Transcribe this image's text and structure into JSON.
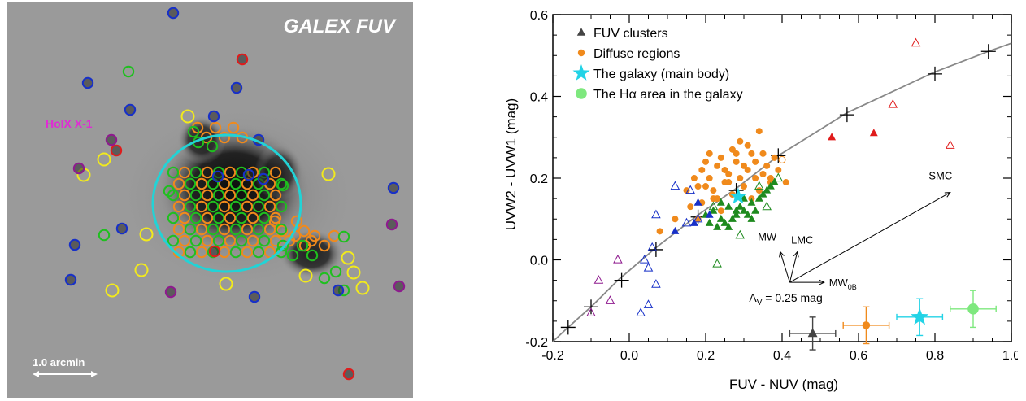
{
  "image_panel": {
    "title": "GALEX FUV",
    "source_label": "HoIX X-1",
    "scale_label": "1.0 arcmin",
    "colors": {
      "background": "#9a9a9a",
      "ellipse": "#22d3d6",
      "label_magenta": "#e02bd5"
    },
    "markers": {
      "yellow": {
        "color": "#f2ea1c",
        "count": 12
      },
      "blue": {
        "color": "#1730c8",
        "count": 15
      },
      "green": {
        "color": "#1fbf1f",
        "count": 55
      },
      "orange": {
        "color": "#f08a1c",
        "count": 60
      },
      "red": {
        "color": "#e01b1b",
        "count": 4
      },
      "purple": {
        "color": "#8e1a8e",
        "count": 5
      }
    }
  },
  "chart_data": {
    "type": "scatter",
    "xlabel": "FUV - NUV (mag)",
    "ylabel": "UVW2 - UVW1 (mag)",
    "xlim": [
      -0.2,
      1.0
    ],
    "ylim": [
      -0.2,
      0.6
    ],
    "xticks": [
      "-0.2",
      "0.0",
      "0.2",
      "0.4",
      "0.6",
      "0.8",
      "1.0"
    ],
    "yticks": [
      "-0.2",
      "0.0",
      "0.2",
      "0.4",
      "0.6"
    ],
    "legend": [
      {
        "label": "FUV clusters",
        "marker": "triangle",
        "color": "#444444"
      },
      {
        "label": "Diffuse regions",
        "marker": "circle",
        "color": "#f08a1c"
      },
      {
        "label": "The galaxy (main body)",
        "marker": "star",
        "color": "#22d3e6"
      },
      {
        "label": "The Hα area in the galaxy",
        "marker": "circle",
        "color": "#7ee87e"
      }
    ],
    "model_track": {
      "x": [
        -0.2,
        -0.16,
        -0.1,
        -0.03,
        0.07,
        0.18,
        0.28,
        0.39,
        0.57,
        0.8,
        0.94,
        1.0
      ],
      "y": [
        -0.2,
        -0.165,
        -0.115,
        -0.05,
        0.03,
        0.11,
        0.175,
        0.255,
        0.36,
        0.46,
        0.51,
        0.53
      ],
      "crosses_x": [
        -0.16,
        -0.1,
        -0.02,
        0.07,
        0.18,
        0.28,
        0.39,
        0.57,
        0.8,
        0.94
      ],
      "crosses_y": [
        -0.165,
        -0.115,
        -0.05,
        0.025,
        0.105,
        0.17,
        0.255,
        0.355,
        0.455,
        0.51
      ]
    },
    "series": [
      {
        "name": "Diffuse regions",
        "marker": "circle",
        "color": "#f08a1c",
        "x": [
          0.15,
          0.17,
          0.18,
          0.19,
          0.2,
          0.21,
          0.22,
          0.23,
          0.24,
          0.25,
          0.26,
          0.27,
          0.28,
          0.29,
          0.3,
          0.31,
          0.32,
          0.33,
          0.34,
          0.35,
          0.36,
          0.37,
          0.38,
          0.39,
          0.41,
          0.19,
          0.23,
          0.27,
          0.31,
          0.35,
          0.21,
          0.25,
          0.29,
          0.33,
          0.37,
          0.22,
          0.26,
          0.3,
          0.2,
          0.24,
          0.28,
          0.32,
          0.16,
          0.18,
          0.34,
          0.12,
          0.08
        ],
        "y": [
          0.17,
          0.2,
          0.18,
          0.22,
          0.24,
          0.2,
          0.17,
          0.23,
          0.25,
          0.19,
          0.21,
          0.16,
          0.24,
          0.2,
          0.18,
          0.22,
          0.26,
          0.2,
          0.17,
          0.21,
          0.23,
          0.19,
          0.25,
          0.22,
          0.19,
          0.14,
          0.15,
          0.27,
          0.28,
          0.26,
          0.26,
          0.22,
          0.29,
          0.24,
          0.2,
          0.15,
          0.19,
          0.23,
          0.18,
          0.12,
          0.26,
          0.15,
          0.13,
          0.1,
          0.315,
          0.1,
          0.07
        ]
      },
      {
        "name": "Diffuse regions (open)",
        "marker": "circle-open",
        "color": "#f08a1c",
        "x": [
          0.4
        ],
        "y": [
          0.245
        ]
      },
      {
        "name": "Green clusters",
        "marker": "triangle",
        "color": "#1e8a1e",
        "x": [
          0.2,
          0.22,
          0.24,
          0.26,
          0.28,
          0.3,
          0.32,
          0.34,
          0.36,
          0.23,
          0.25,
          0.27,
          0.29,
          0.31,
          0.33,
          0.35,
          0.37,
          0.21,
          0.24,
          0.28,
          0.32,
          0.38,
          0.26,
          0.3
        ],
        "y": [
          0.11,
          0.12,
          0.1,
          0.13,
          0.11,
          0.12,
          0.14,
          0.15,
          0.17,
          0.08,
          0.09,
          0.1,
          0.13,
          0.11,
          0.12,
          0.16,
          0.18,
          0.09,
          0.14,
          0.12,
          0.1,
          0.19,
          0.08,
          0.15
        ]
      },
      {
        "name": "Green clusters (open)",
        "marker": "triangle-open",
        "color": "#1e8a1e",
        "x": [
          0.29,
          0.23,
          0.36,
          0.39,
          0.22,
          0.34
        ],
        "y": [
          0.06,
          -0.01,
          0.13,
          0.2,
          0.13,
          0.18
        ]
      },
      {
        "name": "Blue clusters",
        "marker": "triangle",
        "color": "#1730c8",
        "x": [
          0.12,
          0.17,
          0.18,
          0.21
        ],
        "y": [
          0.07,
          0.09,
          0.14,
          0.11
        ]
      },
      {
        "name": "Blue clusters (open)",
        "marker": "triangle-open",
        "color": "#1730c8",
        "x": [
          0.07,
          0.12,
          0.15,
          0.05,
          0.06,
          0.03,
          0.07,
          0.04,
          0.05,
          0.18,
          0.16
        ],
        "y": [
          0.11,
          0.18,
          0.09,
          -0.02,
          0.03,
          -0.13,
          -0.06,
          0.0,
          -0.11,
          0.1,
          0.17
        ]
      },
      {
        "name": "Purple clusters (open)",
        "marker": "triangle-open",
        "color": "#8e1a8e",
        "x": [
          -0.1,
          -0.08,
          -0.05,
          -0.03
        ],
        "y": [
          -0.13,
          -0.05,
          -0.1,
          0.0
        ]
      },
      {
        "name": "Red clusters",
        "marker": "triangle",
        "color": "#e01b1b",
        "x": [
          0.53,
          0.64
        ],
        "y": [
          0.3,
          0.31
        ]
      },
      {
        "name": "Red clusters (open)",
        "marker": "triangle-open",
        "color": "#e01b1b",
        "x": [
          0.75,
          0.69,
          0.84
        ],
        "y": [
          0.53,
          0.38,
          0.28
        ]
      },
      {
        "name": "The galaxy (main body)",
        "marker": "star",
        "color": "#22d3e6",
        "x": [
          0.285
        ],
        "y": [
          0.155
        ]
      }
    ],
    "error_bars": [
      {
        "marker": "triangle",
        "color": "#444444",
        "x": 0.48,
        "y": -0.18,
        "xerr": 0.06,
        "yerr": 0.04
      },
      {
        "marker": "circle",
        "color": "#f08a1c",
        "x": 0.62,
        "y": -0.16,
        "xerr": 0.06,
        "yerr": 0.045
      },
      {
        "marker": "star",
        "color": "#22d3e6",
        "x": 0.76,
        "y": -0.14,
        "xerr": 0.06,
        "yerr": 0.045
      },
      {
        "marker": "circle",
        "color": "#7ee87e",
        "x": 0.9,
        "y": -0.12,
        "xerr": 0.06,
        "yerr": 0.045
      }
    ],
    "extinction": {
      "origin": [
        0.42,
        -0.055
      ],
      "label": "A",
      "label_sub": "V",
      "label_rest": " = 0.25 mag",
      "vectors": [
        {
          "name": "MW",
          "dx": -0.025,
          "dy": 0.075
        },
        {
          "name": "LMC",
          "dx": 0.02,
          "dy": 0.075
        },
        {
          "name": "MW",
          "sub": "0B",
          "dx": 0.09,
          "dy": 0.0
        },
        {
          "name": "SMC",
          "dx": 0.42,
          "dy": 0.22
        }
      ]
    }
  }
}
